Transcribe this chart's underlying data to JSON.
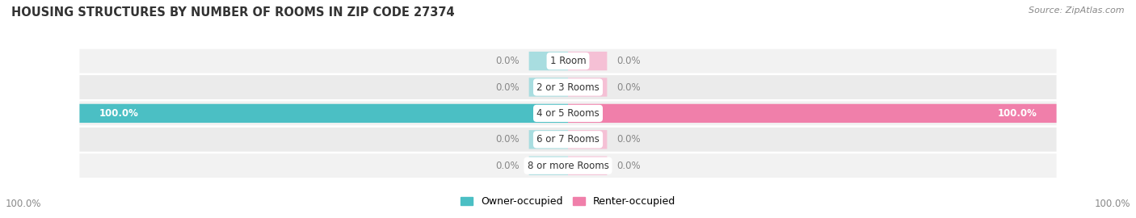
{
  "title": "HOUSING STRUCTURES BY NUMBER OF ROOMS IN ZIP CODE 27374",
  "source": "Source: ZipAtlas.com",
  "categories": [
    "1 Room",
    "2 or 3 Rooms",
    "4 or 5 Rooms",
    "6 or 7 Rooms",
    "8 or more Rooms"
  ],
  "owner_values": [
    0.0,
    0.0,
    100.0,
    0.0,
    0.0
  ],
  "renter_values": [
    0.0,
    0.0,
    100.0,
    0.0,
    0.0
  ],
  "owner_color": "#4bbfc4",
  "owner_color_light": "#a8dde0",
  "renter_color": "#f07faa",
  "renter_color_light": "#f5c0d5",
  "owner_label": "Owner-occupied",
  "renter_label": "Renter-occupied",
  "row_bg_color_odd": "#f2f2f2",
  "row_bg_color_even": "#ebebeb",
  "max_value": 100.0,
  "stub_value": 8.0,
  "title_fontsize": 10.5,
  "source_fontsize": 8,
  "label_fontsize": 8.5,
  "category_fontsize": 8.5,
  "legend_fontsize": 9,
  "value_label_white": "#ffffff",
  "value_label_dark": "#888888",
  "category_label_color": "#333333"
}
